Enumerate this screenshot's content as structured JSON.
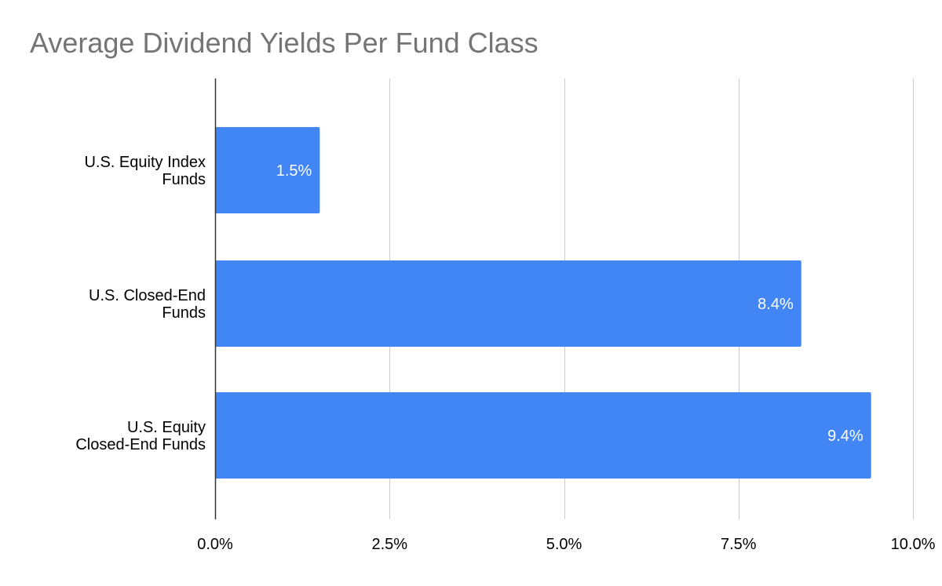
{
  "chart_data": {
    "type": "bar",
    "orientation": "horizontal",
    "title": "Average Dividend Yields Per Fund Class",
    "categories": [
      [
        "U.S. Equity Index",
        "Funds"
      ],
      [
        "U.S. Closed-End",
        "Funds"
      ],
      [
        "U.S. Equity",
        "Closed-End Funds"
      ]
    ],
    "values": [
      1.5,
      8.4,
      9.4
    ],
    "data_labels": [
      "1.5%",
      "8.4%",
      "9.4%"
    ],
    "xlim": [
      0,
      10
    ],
    "x_ticks": [
      0,
      2.5,
      5,
      7.5,
      10
    ],
    "x_tick_labels": [
      "0.0%",
      "2.5%",
      "5.0%",
      "7.5%",
      "10.0%"
    ],
    "xlabel": "",
    "ylabel": "",
    "grid": true,
    "legend": "none",
    "colors": {
      "bar": "#4285f4",
      "grid": "#cccccc",
      "axis": "#333333",
      "title": "#757575",
      "data_label": "#ffffff",
      "tick_label": "#000000"
    }
  }
}
